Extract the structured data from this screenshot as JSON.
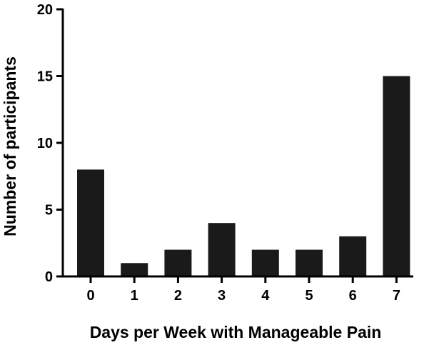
{
  "chart_data": {
    "type": "bar",
    "title": "",
    "xlabel": "Days per Week with Manageable Pain",
    "ylabel": "Number of participants",
    "categories": [
      "0",
      "1",
      "2",
      "3",
      "4",
      "5",
      "6",
      "7"
    ],
    "values": [
      8,
      1,
      2,
      4,
      2,
      2,
      3,
      15
    ],
    "ylim": [
      0,
      20
    ],
    "yticks": [
      0,
      5,
      10,
      15,
      20
    ],
    "bar_color": "#1a1a1a",
    "axis_color": "#000000",
    "grid": false
  }
}
